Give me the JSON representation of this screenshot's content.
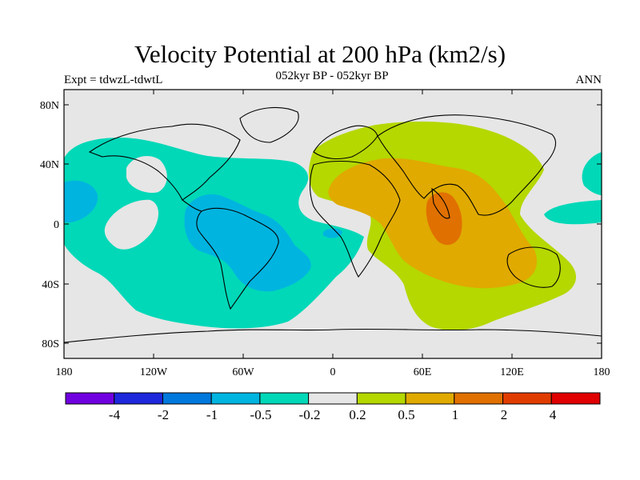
{
  "figure": {
    "title": "Velocity Potential at 200 hPa (km2/s)",
    "subtitle": "052kyr BP - 052kyr BP",
    "left_string": "Expt = tdwzL-tdwtL",
    "right_string": "ANN"
  },
  "map": {
    "projection": "cylindrical equidistant",
    "lon_range": [
      -180,
      180
    ],
    "lat_range": [
      -90,
      90
    ],
    "lat_ticks": [
      "80N",
      "40N",
      "0",
      "40S",
      "80S"
    ],
    "lon_ticks": [
      "180",
      "120W",
      "60W",
      "0",
      "60E",
      "120E",
      "180"
    ],
    "background_color": "#e6e6e6",
    "regions": [
      {
        "name": "negative anomaly over Pacific/Americas/Atlantic",
        "level": "-0.5 to -0.2",
        "color": "#00d8b8"
      },
      {
        "name": "stronger negative over South America",
        "level": "-1 to -0.5",
        "color": "#00b4e0"
      },
      {
        "name": "positive anomaly over Africa/Eurasia/Indian Ocean",
        "level": "0.2 to 0.5",
        "color": "#b4d800"
      },
      {
        "name": "positive anomaly core over Indian Ocean/Asia",
        "level": "0.5 to 1",
        "color": "#e0aa00"
      },
      {
        "name": "maximum over central Indian Ocean",
        "level": "1 to 2",
        "color": "#e07000"
      }
    ]
  },
  "colorbar": {
    "labels": [
      "-4",
      "-2",
      "-1",
      "-0.5",
      "-0.2",
      "0.2",
      "0.5",
      "1",
      "2",
      "4"
    ],
    "colors": [
      "#7000e0",
      "#1e28dc",
      "#0078dc",
      "#00b4e0",
      "#00d8b8",
      "#e6e6e6",
      "#b4d800",
      "#e0aa00",
      "#e07000",
      "#e03c00",
      "#e00000"
    ]
  }
}
